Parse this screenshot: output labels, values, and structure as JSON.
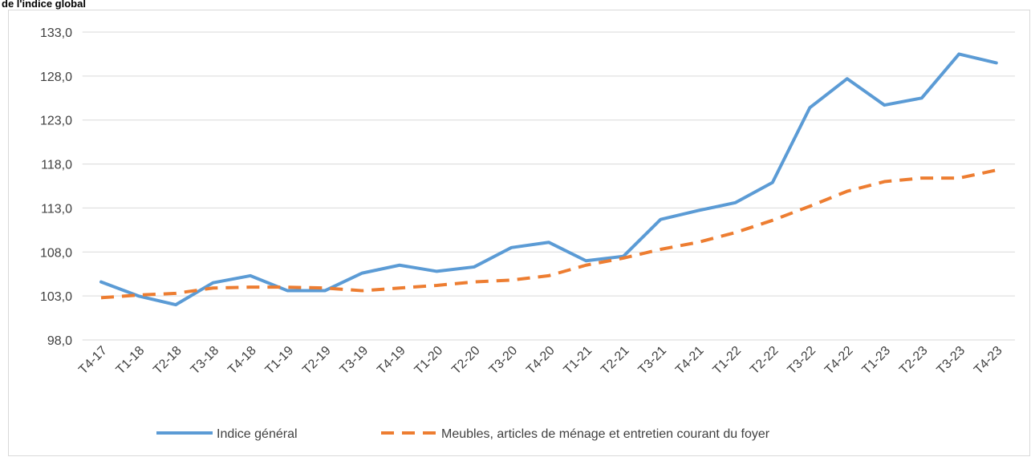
{
  "chart_data": {
    "type": "line",
    "title": "de l'indice global",
    "categories": [
      "T4-17",
      "T1-18",
      "T2-18",
      "T3-18",
      "T4-18",
      "T1-19",
      "T2-19",
      "T3-19",
      "T4-19",
      "T1-20",
      "T2-20",
      "T3-20",
      "T4-20",
      "T1-21",
      "T2-21",
      "T3-21",
      "T4-21",
      "T1-22",
      "T2-22",
      "T3-22",
      "T4-22",
      "T1-23",
      "T2-23",
      "T3-23",
      "T4-23"
    ],
    "series": [
      {
        "name": "Indice général",
        "color": "#5b9bd5",
        "dash": false,
        "values": [
          104.6,
          103.0,
          102.0,
          104.5,
          105.3,
          103.6,
          103.6,
          105.6,
          106.5,
          105.8,
          106.3,
          108.5,
          109.1,
          107.0,
          107.5,
          111.7,
          112.7,
          113.6,
          115.9,
          124.4,
          127.7,
          124.7,
          125.5,
          130.5,
          129.5
        ]
      },
      {
        "name": "Meubles, articles de ménage et entretien courant du foyer",
        "color": "#ed7d31",
        "dash": true,
        "values": [
          102.8,
          103.1,
          103.3,
          103.9,
          104.0,
          104.0,
          103.9,
          103.6,
          103.9,
          104.2,
          104.6,
          104.8,
          105.3,
          106.5,
          107.3,
          108.3,
          109.1,
          110.2,
          111.6,
          113.2,
          114.9,
          116.0,
          116.4,
          116.4,
          117.3
        ]
      }
    ],
    "ylim": [
      98,
      133
    ],
    "yticks": [
      {
        "value": 98,
        "label": "98,0"
      },
      {
        "value": 103,
        "label": "103,0"
      },
      {
        "value": 108,
        "label": "108,0"
      },
      {
        "value": 113,
        "label": "113,0"
      },
      {
        "value": 118,
        "label": "118,0"
      },
      {
        "value": 123,
        "label": "123,0"
      },
      {
        "value": 128,
        "label": "128,0"
      },
      {
        "value": 133,
        "label": "133,0"
      }
    ],
    "grid": true,
    "legend": "bottom"
  }
}
